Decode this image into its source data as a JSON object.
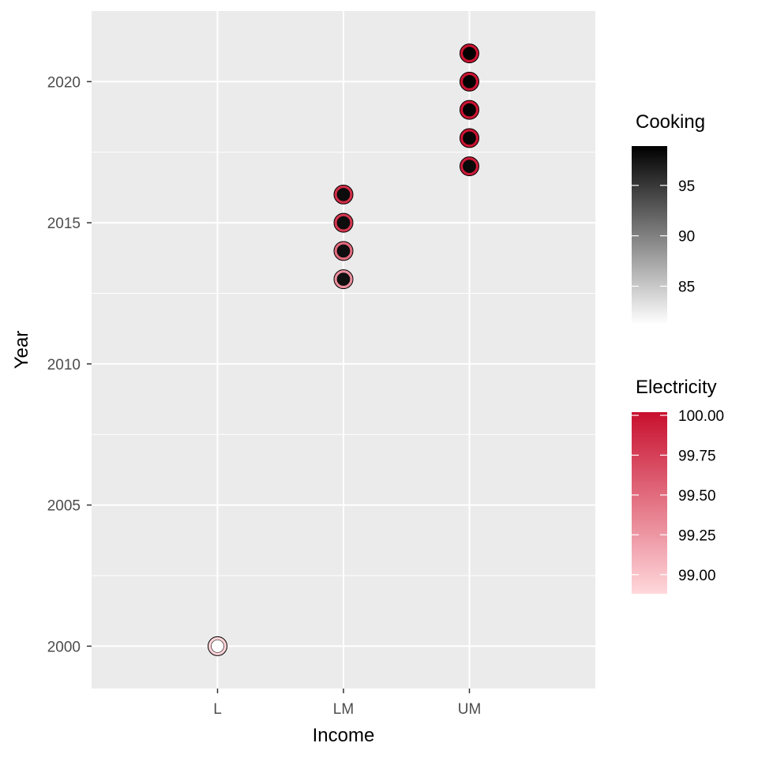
{
  "chart_data": {
    "type": "scatter",
    "xlabel": "Income",
    "ylabel": "Year",
    "x_categories": [
      "L",
      "LM",
      "UM"
    ],
    "y_ticks": [
      2000,
      2005,
      2010,
      2015,
      2020
    ],
    "y_ticks_minor": [
      2002.5,
      2007.5,
      2012.5,
      2017.5
    ],
    "ylim": [
      1998.5,
      2022.5
    ],
    "grid": true,
    "points": [
      {
        "x": "L",
        "y": 2000,
        "cooking": 81.2,
        "electricity": 98.9
      },
      {
        "x": "LM",
        "y": 2013,
        "cooking": 97.8,
        "electricity": 99.3
      },
      {
        "x": "LM",
        "y": 2014,
        "cooking": 97.9,
        "electricity": 99.5
      },
      {
        "x": "LM",
        "y": 2015,
        "cooking": 98.0,
        "electricity": 99.8
      },
      {
        "x": "LM",
        "y": 2016,
        "cooking": 98.1,
        "electricity": 99.85
      },
      {
        "x": "UM",
        "y": 2017,
        "cooking": 98.3,
        "electricity": 99.95
      },
      {
        "x": "UM",
        "y": 2018,
        "cooking": 98.5,
        "electricity": 100.0
      },
      {
        "x": "UM",
        "y": 2019,
        "cooking": 98.7,
        "electricity": 100.0
      },
      {
        "x": "UM",
        "y": 2020,
        "cooking": 98.8,
        "electricity": 100.0
      },
      {
        "x": "UM",
        "y": 2021,
        "cooking": 98.9,
        "electricity": 100.0
      }
    ],
    "legends": {
      "position": "right",
      "cooking": {
        "title": "Cooking",
        "range": [
          81.2,
          98.9
        ],
        "ticks": [
          {
            "label": "95",
            "value": 95
          },
          {
            "label": "90",
            "value": 90
          },
          {
            "label": "85",
            "value": 85
          }
        ],
        "color_low": "#ffffff",
        "color_high": "#000000"
      },
      "electricity": {
        "title": "Electricity",
        "range": [
          98.88,
          100.02
        ],
        "ticks": [
          {
            "label": "100.00",
            "value": 100.0
          },
          {
            "label": "99.75",
            "value": 99.75
          },
          {
            "label": "99.50",
            "value": 99.5
          },
          {
            "label": "99.25",
            "value": 99.25
          },
          {
            "label": "99.00",
            "value": 99.0
          }
        ],
        "color_low": "#ffd8dc",
        "color_high": "#c8102e"
      }
    },
    "panel_color": "#ebebeb",
    "grid_color": "#ffffff"
  }
}
